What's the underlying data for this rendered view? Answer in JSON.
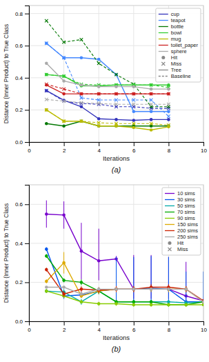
{
  "chart_data": [
    {
      "type": "line",
      "title": "(a)",
      "xlabel": "Iterations",
      "ylabel": "Distance (Inner Product) to True Class",
      "x": [
        1,
        2,
        3,
        4,
        5,
        6,
        7,
        8
      ],
      "xlim": [
        0,
        10
      ],
      "ylim": [
        0.0,
        0.85
      ],
      "xticks": [
        0,
        2,
        4,
        6,
        8,
        10
      ],
      "yticks": [
        {
          "value": 0.0,
          "label": "0.0"
        },
        0.2,
        0.4,
        0.6,
        0.8
      ],
      "grid": true,
      "legend": "upper right",
      "series": [
        {
          "name": "cup",
          "color": "#3333bb",
          "line_style": "solid",
          "marker": "circle",
          "values": [
            0.32,
            0.26,
            0.22,
            0.145,
            0.14,
            0.135,
            0.14,
            0.14
          ]
        },
        {
          "name": "cup",
          "color": "#3333bb",
          "line_style": "dashed",
          "marker": "x",
          "values": [
            0.32,
            0.255,
            0.24,
            0.235,
            0.22,
            0.22,
            0.21,
            0.21
          ]
        },
        {
          "name": "teapot",
          "color": "#4488ff",
          "line_style": "solid",
          "marker": "circle",
          "values": [
            0.615,
            0.525,
            0.525,
            0.515,
            0.42,
            0.19,
            0.19,
            0.19
          ]
        },
        {
          "name": "teapot",
          "color": "#4488ff",
          "line_style": "dashed",
          "marker": "x",
          "values": [
            0.615,
            0.525,
            0.275,
            0.262,
            0.262,
            0.262,
            0.262,
            0.16
          ]
        },
        {
          "name": "bottle",
          "color": "#007700",
          "line_style": "solid",
          "marker": "circle",
          "values": [
            0.115,
            0.1,
            0.13,
            0.1,
            0.1,
            0.1,
            0.1,
            0.1
          ]
        },
        {
          "name": "bottle",
          "color": "#007700",
          "line_style": "dashed",
          "marker": "x",
          "values": [
            0.755,
            0.622,
            0.638,
            0.49,
            0.42,
            0.36,
            0.22,
            0.22
          ]
        },
        {
          "name": "bowl",
          "color": "#33cc33",
          "line_style": "solid",
          "marker": "circle",
          "values": [
            0.42,
            0.41,
            0.35,
            0.35,
            0.355,
            0.355,
            0.355,
            0.355
          ]
        },
        {
          "name": "bowl",
          "color": "#33cc33",
          "line_style": "dashed",
          "marker": "x",
          "values": [
            0.42,
            0.41,
            0.36,
            0.355,
            0.355,
            0.355,
            0.355,
            0.34
          ]
        },
        {
          "name": "mug",
          "color": "#bbbb00",
          "line_style": "solid",
          "marker": "circle",
          "values": [
            0.2,
            0.13,
            0.13,
            0.1,
            0.1,
            0.09,
            0.075,
            0.095
          ]
        },
        {
          "name": "mug",
          "color": "#bbbb00",
          "line_style": "dashed",
          "marker": "x",
          "values": [
            0.2,
            0.13,
            0.13,
            0.12,
            0.115,
            0.115,
            0.115,
            0.105
          ]
        },
        {
          "name": "toilet_paper",
          "color": "#cc2222",
          "line_style": "solid",
          "marker": "circle",
          "values": [
            0.355,
            0.3,
            0.3,
            0.3,
            0.3,
            0.3,
            0.3,
            0.3
          ]
        },
        {
          "name": "toilet_paper",
          "color": "#cc2222",
          "line_style": "dashed",
          "marker": "x",
          "values": [
            0.36,
            0.33,
            0.3,
            0.3,
            0.3,
            0.3,
            0.3,
            0.3
          ]
        },
        {
          "name": "sphere",
          "color": "#aaaaaa",
          "line_style": "solid",
          "marker": "circle",
          "values": [
            0.49,
            0.38,
            0.355,
            0.345,
            0.345,
            0.345,
            0.33,
            0.33
          ]
        },
        {
          "name": "sphere",
          "color": "#aaaaaa",
          "line_style": "dashed",
          "marker": "x",
          "values": [
            0.265,
            0.255,
            0.245,
            0.24,
            0.235,
            0.235,
            0.235,
            0.235
          ]
        }
      ],
      "legend_entries": [
        {
          "label": "Hit",
          "color": "#888888",
          "marker": "circle"
        },
        {
          "label": "Miss",
          "color": "#888888",
          "marker": "x"
        },
        {
          "label": "Tree",
          "color": "#888888",
          "line_style": "solid"
        },
        {
          "label": "Baseline",
          "color": "#888888",
          "line_style": "dashed"
        }
      ]
    },
    {
      "type": "line",
      "title": "(b)",
      "xlabel": "Iterations",
      "ylabel": "Distance (Inner Product) to True Class",
      "x": [
        1,
        2,
        3,
        4,
        5,
        6,
        7,
        8,
        9,
        10
      ],
      "xlim": [
        0,
        10
      ],
      "ylim": [
        0.0,
        0.7
      ],
      "xticks": [
        0,
        2,
        4,
        6,
        8,
        10
      ],
      "yticks": [
        {
          "value": 0.0,
          "label": "0.0"
        },
        0.2,
        0.4,
        0.6
      ],
      "grid": true,
      "legend": "upper right",
      "series": [
        {
          "name": "10 sims",
          "color": "#7700cc",
          "line_style": "solid",
          "marker": "circle",
          "values": [
            0.55,
            0.545,
            0.36,
            0.31,
            0.32,
            0.165,
            0.165,
            0.165,
            0.13,
            0.105
          ],
          "error_low": [
            0.07,
            0.07,
            0.145,
            0.1,
            0.015,
            0.05,
            0.05,
            0.05,
            0.05,
            0.005
          ],
          "error_high": [
            0.07,
            0.07,
            0.145,
            0.165,
            0.015,
            0.175,
            0.175,
            0.165,
            0.175,
            0.01
          ]
        },
        {
          "name": "30 sims",
          "color": "#0055ee",
          "line_style": "solid",
          "marker": "circle",
          "values": [
            0.37,
            0.13,
            0.135,
            0.155,
            0.165,
            0.165,
            0.17,
            0.165,
            0.1,
            0.1
          ],
          "error_low": [
            0.01,
            0.015,
            0.015,
            0.015,
            0.08,
            0.08,
            0.08,
            0.08,
            0.02,
            0.02
          ],
          "error_high": [
            0.01,
            0.015,
            0.015,
            0.015,
            0.165,
            0.165,
            0.165,
            0.165,
            0.155,
            0.155
          ]
        },
        {
          "name": "50 sims",
          "color": "#00aaaa",
          "line_style": "solid",
          "marker": "circle",
          "values": [
            0.155,
            0.15,
            0.1,
            0.155,
            0.1,
            0.1,
            0.1,
            0.1,
            0.095,
            0.1
          ],
          "error_low": [
            0.01,
            0.015,
            0.015,
            0.01,
            0.01,
            0.01,
            0.01,
            0.01,
            0.01,
            0.005
          ],
          "error_high": [
            0.01,
            0.015,
            0.015,
            0.01,
            0.01,
            0.01,
            0.01,
            0.01,
            0.01,
            0.005
          ]
        },
        {
          "name": "70 sims",
          "color": "#00aa00",
          "line_style": "solid",
          "marker": "circle",
          "values": [
            0.335,
            0.21,
            0.2,
            0.155,
            0.1,
            0.1,
            0.1,
            0.085,
            0.085,
            0.1
          ],
          "error_low": [
            0.01,
            0.01,
            0.015,
            0.015,
            0.01,
            0.01,
            0.01,
            0.01,
            0.01,
            0.005
          ],
          "error_high": [
            0.01,
            0.01,
            0.015,
            0.015,
            0.01,
            0.01,
            0.01,
            0.01,
            0.01,
            0.005
          ]
        },
        {
          "name": "90 sims",
          "color": "#88cc00",
          "line_style": "solid",
          "marker": "circle",
          "values": [
            0.155,
            0.13,
            0.1,
            0.09,
            0.09,
            0.085,
            0.085,
            0.085,
            0.085,
            0.085
          ],
          "error_low": [
            0.01,
            0.01,
            0.01,
            0.01,
            0.01,
            0.01,
            0.01,
            0.01,
            0.01,
            0.005
          ],
          "error_high": [
            0.01,
            0.01,
            0.01,
            0.01,
            0.01,
            0.01,
            0.01,
            0.01,
            0.01,
            0.005
          ]
        },
        {
          "name": "150 sims",
          "color": "#ddaa00",
          "line_style": "solid",
          "marker": "circle",
          "values": [
            0.205,
            0.3,
            0.13,
            0.155,
            0.165,
            0.165,
            0.165,
            0.165,
            0.165,
            0.1
          ],
          "error_low": [
            0.01,
            0.055,
            0.01,
            0.015,
            0.015,
            0.015,
            0.015,
            0.015,
            0.015,
            0.005
          ],
          "error_high": [
            0.01,
            0.055,
            0.01,
            0.015,
            0.015,
            0.015,
            0.015,
            0.015,
            0.015,
            0.005
          ]
        },
        {
          "name": "200 sims",
          "color": "#cc2200",
          "line_style": "solid",
          "marker": "circle",
          "values": [
            0.265,
            0.14,
            0.165,
            0.16,
            0.165,
            0.165,
            0.175,
            0.175,
            0.165,
            0.105
          ],
          "error_low": [
            0.01,
            0.015,
            0.015,
            0.015,
            0.015,
            0.015,
            0.015,
            0.015,
            0.015,
            0.005
          ],
          "error_high": [
            0.01,
            0.015,
            0.015,
            0.015,
            0.015,
            0.015,
            0.015,
            0.015,
            0.015,
            0.005
          ]
        },
        {
          "name": "250 sims",
          "color": "#aaaaaa",
          "line_style": "solid",
          "marker": "circle",
          "values": [
            0.175,
            0.175,
            0.14,
            0.165,
            0.165,
            0.165,
            0.165,
            0.165,
            0.165,
            0.1
          ],
          "error_low": [
            0.005,
            0.005,
            0.005,
            0.005,
            0.005,
            0.005,
            0.005,
            0.005,
            0.005,
            0.005
          ],
          "error_high": [
            0.005,
            0.005,
            0.005,
            0.005,
            0.005,
            0.005,
            0.005,
            0.005,
            0.005,
            0.005
          ]
        }
      ],
      "legend_entries": [
        {
          "label": "Hit",
          "color": "#888888",
          "marker": "circle"
        },
        {
          "label": "Miss",
          "color": "#888888",
          "marker": "x"
        }
      ]
    }
  ]
}
